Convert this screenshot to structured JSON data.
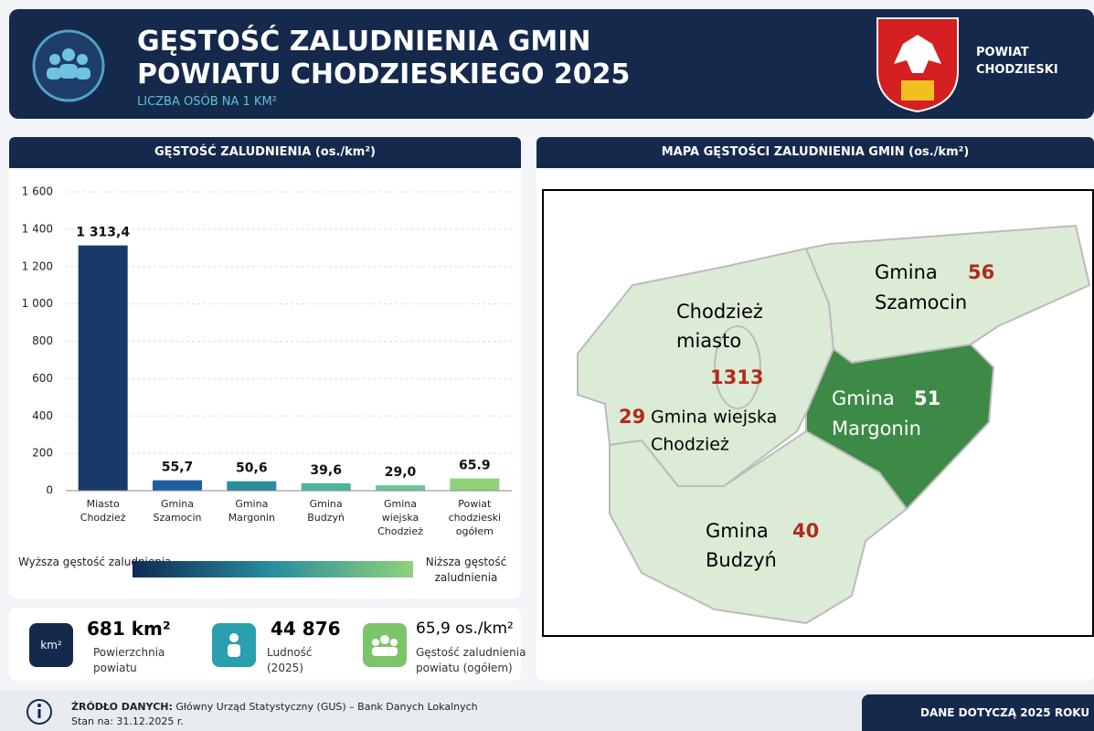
{
  "header": {
    "title_lines": [
      "GĘSTOŚĆ ZALUDNIENIA GMIN",
      "POWIATU CHODZIESKIEGO 2025"
    ],
    "subtitle": "LICZBA OSÓB NA 1 KM²",
    "county_lines": [
      "POWIAT",
      "CHODZIESKI"
    ]
  },
  "chart_data": {
    "type": "bar",
    "title": "GĘSTOŚĆ ZALUDNIENIA (os./km²)",
    "categories": [
      "Miasto Chodzież",
      "Gmina Szamocin",
      "Gmina Margonin",
      "Gmina Budzyń",
      "Gmina wiejska Chodzież",
      "Powiat chodzieski ogółem"
    ],
    "values": [
      1313.4,
      55.7,
      50.6,
      39.6,
      29.0,
      65.9
    ],
    "value_labels": [
      "1 313,4",
      "55,7",
      "50,6",
      "39,6",
      "29,0",
      "65.9"
    ],
    "colors": [
      "#173a6a",
      "#1f5da3",
      "#2b8d9e",
      "#4cb39c",
      "#6cc596",
      "#8fd27a"
    ],
    "ylim": [
      0,
      1600
    ],
    "yticks": [
      0,
      200,
      400,
      600,
      800,
      {
        "value": 1000,
        "label": "1 000"
      },
      {
        "value": 1200,
        "label": "1 200"
      },
      {
        "value": 1400,
        "label": "1 400"
      },
      {
        "value": 1600,
        "label": "1 600"
      }
    ],
    "grid": true,
    "legend_left": "Wyższa gęstość zaludnienia",
    "legend_right": "Niższa gęstość zaludnienia"
  },
  "map": {
    "title": "MAPA GĘSTOŚCI ZALUDNIENIA GMIN (os./km²)",
    "regions": [
      {
        "name_lines": [
          "Chodzież",
          "miasto"
        ],
        "value": 1313
      },
      {
        "name_lines": [
          "Gmina wiejska",
          "Chodzież"
        ],
        "value": 29
      },
      {
        "name_lines": [
          "Gmina",
          "Szamocin"
        ],
        "value": 56
      },
      {
        "name_lines": [
          "Gmina",
          "Margonin"
        ],
        "value": 51
      },
      {
        "name_lines": [
          "Gmina",
          "Budzyń"
        ],
        "value": 40
      }
    ]
  },
  "stats": [
    {
      "icon_text": "km²",
      "value": "681 km²",
      "label_lines": [
        "Powierzchnia",
        "powiatu"
      ]
    },
    {
      "value": "44 876",
      "label_lines": [
        "Ludność",
        "(2025)"
      ]
    },
    {
      "value": "65,9 os./km²",
      "label_lines": [
        "Gęstość zaludnienia",
        "powiatu (ogółem)"
      ]
    }
  ],
  "footer": {
    "source_label": "ŹRÓDŁO DANYCH:",
    "source": "Główny Urząd Statystyczny (GUS) – Bank Danych Lokalnych",
    "date": "Stan na: 31.12.2025 r.",
    "note": "DANE DOTYCZĄ 2025 ROKU"
  }
}
